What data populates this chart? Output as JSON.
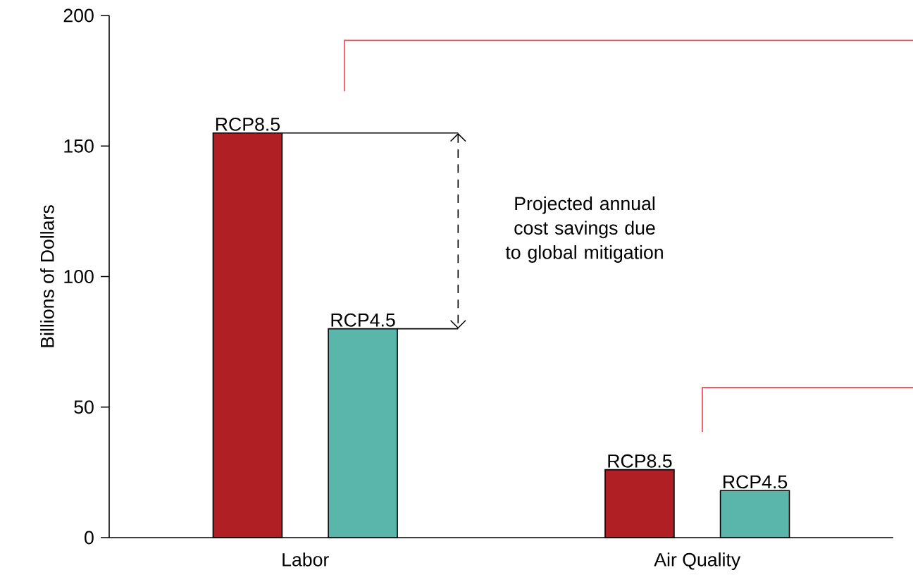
{
  "chart_data": {
    "type": "bar",
    "ylabel": "Billions of Dollars",
    "categories": [
      "Labor",
      "Air Quality"
    ],
    "series": [
      {
        "name": "RCP8.5",
        "color": "#b01f24",
        "values": [
          155,
          26
        ]
      },
      {
        "name": "RCP4.5",
        "color": "#5ab5ab",
        "values": [
          80,
          18
        ]
      }
    ],
    "ylim": [
      0,
      200
    ],
    "yticks": [
      0,
      50,
      100,
      150,
      200
    ],
    "annotations": [
      "Projected annual cost savings due to global mitigation"
    ]
  }
}
